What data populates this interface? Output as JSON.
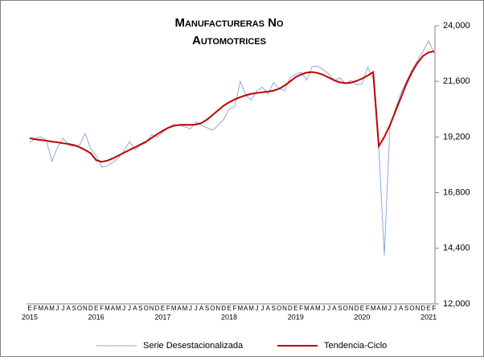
{
  "chart_data": {
    "type": "line",
    "title": "Manufactureras No Automotrices",
    "categories": [
      "E",
      "F",
      "M",
      "A",
      "M",
      "J",
      "J",
      "A",
      "S",
      "O",
      "N",
      "D",
      "E",
      "F",
      "M",
      "A",
      "M",
      "J",
      "J",
      "A",
      "S",
      "O",
      "N",
      "D",
      "E",
      "F",
      "M",
      "A",
      "M",
      "J",
      "J",
      "A",
      "S",
      "O",
      "N",
      "D",
      "E",
      "F",
      "M",
      "A",
      "M",
      "J",
      "J",
      "A",
      "S",
      "O",
      "N",
      "D",
      "E",
      "F",
      "M",
      "A",
      "M",
      "J",
      "J",
      "A",
      "S",
      "O",
      "N",
      "D",
      "E",
      "F",
      "M",
      "A",
      "M",
      "J",
      "J",
      "A",
      "S",
      "O",
      "N",
      "D",
      "E",
      "F"
    ],
    "years": [
      "2015",
      "2016",
      "2017",
      "2018",
      "2019",
      "2020",
      "2021"
    ],
    "series": [
      {
        "name": "Serie Desestacionalizada",
        "color": "#8eaadb",
        "width": 1,
        "values": [
          18950,
          19150,
          19200,
          19050,
          18150,
          18750,
          19150,
          18850,
          18800,
          18850,
          19350,
          18700,
          18400,
          17900,
          17950,
          18100,
          18300,
          18600,
          19000,
          18650,
          18850,
          18950,
          19300,
          19200,
          19400,
          19600,
          19750,
          19700,
          19650,
          19550,
          19850,
          19700,
          19600,
          19500,
          19700,
          19950,
          20400,
          20500,
          21600,
          21000,
          20800,
          21200,
          21350,
          21050,
          21550,
          21300,
          21200,
          21750,
          21900,
          22000,
          21650,
          22250,
          22250,
          22100,
          21900,
          21650,
          21750,
          21500,
          21650,
          21450,
          21500,
          22200,
          21700,
          18800,
          14100,
          19600,
          20400,
          21100,
          21600,
          22100,
          22500,
          22900,
          23350,
          22800
        ]
      },
      {
        "name": "Tendencia-Ciclo",
        "color": "#c00000",
        "width": 2,
        "values": [
          19150,
          19100,
          19070,
          19040,
          19000,
          18970,
          18930,
          18900,
          18850,
          18760,
          18640,
          18500,
          18200,
          18130,
          18180,
          18280,
          18400,
          18520,
          18640,
          18760,
          18880,
          19000,
          19160,
          19320,
          19470,
          19600,
          19680,
          19720,
          19730,
          19720,
          19740,
          19800,
          19950,
          20150,
          20350,
          20550,
          20700,
          20820,
          20920,
          21000,
          21060,
          21100,
          21130,
          21160,
          21200,
          21280,
          21420,
          21600,
          21780,
          21900,
          21980,
          22000,
          21960,
          21880,
          21760,
          21640,
          21560,
          21520,
          21540,
          21620,
          21720,
          21850,
          22000,
          18800,
          19200,
          19700,
          20300,
          20900,
          21500,
          22000,
          22400,
          22700,
          22850,
          22900
        ]
      }
    ],
    "ylim": [
      12000,
      24000
    ],
    "yticks": [
      {
        "value": 12000,
        "label": "12,000"
      },
      {
        "value": 14400,
        "label": "14,400"
      },
      {
        "value": 16800,
        "label": "16,800"
      },
      {
        "value": 19200,
        "label": "19,200"
      },
      {
        "value": 21600,
        "label": "21,600"
      },
      {
        "value": 24000,
        "label": "24,000"
      }
    ]
  }
}
